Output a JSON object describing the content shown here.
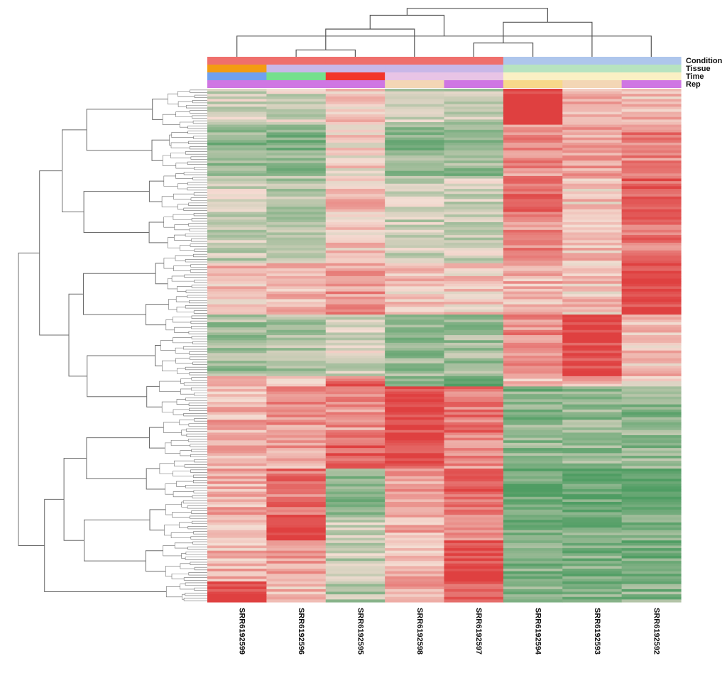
{
  "chart_data": {
    "type": "heatmap",
    "title": "",
    "columns": [
      "SRR6192599",
      "SRR6192596",
      "SRR6192595",
      "SRR6192598",
      "SRR6192597",
      "SRR6192594",
      "SRR6192593",
      "SRR6192592"
    ],
    "annotation_tracks": [
      {
        "name": "Condition",
        "colors": [
          "#ef6f6c",
          "#ef6f6c",
          "#ef6f6c",
          "#ef6f6c",
          "#ef6f6c",
          "#aec6ec",
          "#aec6ec",
          "#aec6ec"
        ]
      },
      {
        "name": "Tissue",
        "colors": [
          "#f39c12",
          "#c9b7e8",
          "#c9b7e8",
          "#c9b7e8",
          "#c9b7e8",
          "#b7e3c0",
          "#b7e3c0",
          "#b7e3c0"
        ]
      },
      {
        "name": "Time",
        "colors": [
          "#6fa0ef",
          "#74e08d",
          "#f2352a",
          "#e8c4e6",
          "#e8c4e6",
          "#faf0c4",
          "#faf0c4",
          "#faf0c4"
        ]
      },
      {
        "name": "Rep",
        "colors": [
          "#cf76e3",
          "#cf76e3",
          "#cf76e3",
          "#f3d6b5",
          "#cf76e3",
          "#f7d98a",
          "#f3d6b5",
          "#cf76e3"
        ]
      }
    ],
    "column_dendrogram_merges": [
      [
        2,
        3
      ],
      [
        5,
        6
      ],
      [
        1,
        8
      ],
      [
        4,
        9
      ],
      [
        7,
        10
      ],
      [
        11,
        12
      ],
      [
        13,
        14
      ]
    ],
    "row_blocks": [
      {
        "rows": 14,
        "values": [
          -0.5,
          -0.4,
          0.3,
          -0.5,
          -0.6,
          2.2,
          0.6,
          0.4
        ]
      },
      {
        "rows": 20,
        "values": [
          -1.2,
          -1.3,
          0.1,
          -1.2,
          -1.1,
          1.0,
          0.8,
          1.1
        ]
      },
      {
        "rows": 18,
        "values": [
          -0.4,
          -0.7,
          0.4,
          -0.5,
          -0.5,
          1.4,
          0.3,
          1.5
        ]
      },
      {
        "rows": 16,
        "values": [
          -0.6,
          -0.4,
          0.3,
          -0.5,
          -0.5,
          1.0,
          0.4,
          1.2
        ]
      },
      {
        "rows": 20,
        "values": [
          0.4,
          0.4,
          0.9,
          0.3,
          0.3,
          0.5,
          0.3,
          2.0
        ]
      },
      {
        "rows": 24,
        "values": [
          -1.0,
          -0.8,
          -0.4,
          -1.1,
          -1.0,
          1.0,
          2.0,
          0.4
        ]
      },
      {
        "rows": 4,
        "values": [
          0.6,
          0.2,
          1.4,
          -1.6,
          -1.6,
          0.4,
          0.7,
          -0.3
        ]
      },
      {
        "rows": 18,
        "values": [
          0.6,
          0.9,
          0.9,
          2.0,
          1.3,
          -1.3,
          -1.2,
          -1.3
        ]
      },
      {
        "rows": 14,
        "values": [
          0.6,
          0.7,
          1.6,
          2.0,
          0.9,
          -1.2,
          -1.2,
          -1.2
        ]
      },
      {
        "rows": 18,
        "values": [
          0.6,
          1.3,
          -1.4,
          0.8,
          1.4,
          -1.7,
          -1.7,
          -1.7
        ]
      },
      {
        "rows": 10,
        "values": [
          0.4,
          2.0,
          -0.5,
          0.6,
          0.9,
          -1.4,
          -1.5,
          -1.5
        ]
      },
      {
        "rows": 16,
        "values": [
          0.5,
          0.8,
          -0.6,
          0.5,
          1.9,
          -1.4,
          -1.4,
          -1.4
        ]
      },
      {
        "rows": 8,
        "values": [
          1.9,
          0.5,
          -0.8,
          0.7,
          1.8,
          -1.3,
          -1.3,
          -1.3
        ]
      }
    ],
    "color_scale": {
      "low": "#4f9d63",
      "mid": "#f4ddd3",
      "high": "#df4040",
      "vmin": -2,
      "vmax": 2
    },
    "legend": "",
    "grid": false
  }
}
